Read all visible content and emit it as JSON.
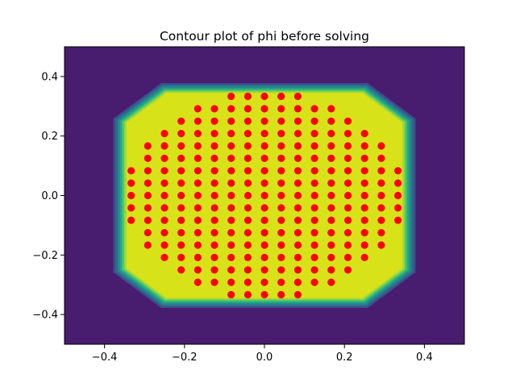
{
  "chart_data": {
    "type": "contour+scatter",
    "title": "Contour plot of phi before solving",
    "xlabel": "",
    "ylabel": "",
    "xlim": [
      -0.5,
      0.5
    ],
    "ylim": [
      -0.5,
      0.5
    ],
    "x_ticks": [
      -0.4,
      -0.2,
      0.0,
      0.2,
      0.4
    ],
    "x_tick_labels": [
      "−0.4",
      "−0.2",
      "0.0",
      "0.2",
      "0.4"
    ],
    "y_ticks": [
      -0.4,
      -0.2,
      0.0,
      0.2,
      0.4
    ],
    "y_tick_labels": [
      "−0.4",
      "−0.2",
      "0.0",
      "0.2",
      "0.4"
    ],
    "grid": false,
    "background_color": "#481c6e",
    "contour_colors": [
      "#481c6e",
      "#3d4c8a",
      "#2f6b8e",
      "#228b8d",
      "#23a983",
      "#53c569",
      "#a0da39",
      "#d8e219"
    ],
    "contour_region": {
      "shape": "octagon",
      "inner_half_width": 0.345,
      "inner_half_height": 0.345,
      "inner_chamfer": 0.245,
      "band_step": 0.0055
    },
    "points_color": "#ff0000",
    "point_spacing": 0.0417,
    "points_note": "",
    "point_rows": [
      {
        "y": 0.3333,
        "x_from": -0.0833,
        "x_to": 0.0833
      },
      {
        "y": 0.2917,
        "x_from": -0.1667,
        "x_to": 0.1667
      },
      {
        "y": 0.25,
        "x_from": -0.2083,
        "x_to": 0.2083
      },
      {
        "y": 0.2083,
        "x_from": -0.25,
        "x_to": 0.25
      },
      {
        "y": 0.1667,
        "x_from": -0.2917,
        "x_to": 0.2917
      },
      {
        "y": 0.125,
        "x_from": -0.2917,
        "x_to": 0.2917
      },
      {
        "y": 0.0833,
        "x_from": -0.3333,
        "x_to": 0.3333
      },
      {
        "y": 0.0417,
        "x_from": -0.3333,
        "x_to": 0.3333
      },
      {
        "y": 0.0,
        "x_from": -0.3333,
        "x_to": 0.3333
      },
      {
        "y": -0.0417,
        "x_from": -0.3333,
        "x_to": 0.3333
      },
      {
        "y": -0.0833,
        "x_from": -0.3333,
        "x_to": 0.3333
      },
      {
        "y": -0.125,
        "x_from": -0.2917,
        "x_to": 0.2917
      },
      {
        "y": -0.1667,
        "x_from": -0.2917,
        "x_to": 0.2917
      },
      {
        "y": -0.2083,
        "x_from": -0.25,
        "x_to": 0.25
      },
      {
        "y": -0.25,
        "x_from": -0.2083,
        "x_to": 0.2083
      },
      {
        "y": -0.2917,
        "x_from": -0.1667,
        "x_to": 0.1667
      },
      {
        "y": -0.3333,
        "x_from": -0.0833,
        "x_to": 0.0833
      }
    ]
  }
}
